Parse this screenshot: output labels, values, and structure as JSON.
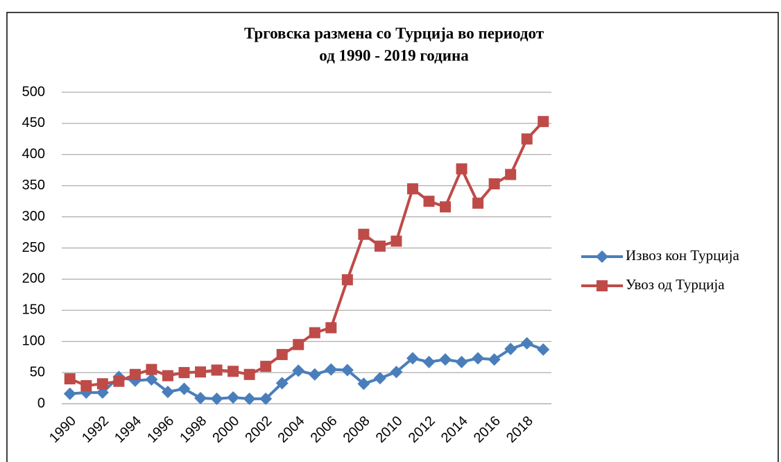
{
  "chart_data": {
    "type": "line",
    "title": [
      "Трговска размена со Турција во периодот",
      "од 1990 - 2019 година"
    ],
    "categories": [
      "1990",
      null,
      "1992",
      null,
      "1994",
      null,
      "1996",
      null,
      "1998",
      null,
      "2000",
      null,
      "2002",
      null,
      "2004",
      null,
      "2006",
      null,
      "2008",
      null,
      "2010",
      null,
      "2012",
      null,
      "2014",
      null,
      "2016",
      null,
      "2018",
      null
    ],
    "series": [
      {
        "name": "Извоз кон Турција",
        "color": "#4a7ebb",
        "marker": "diamond",
        "values": [
          16,
          18,
          18,
          43,
          37,
          39,
          19,
          24,
          9,
          8,
          10,
          8,
          8,
          33,
          53,
          47,
          55,
          54,
          32,
          41,
          51,
          73,
          67,
          71,
          67,
          73,
          71,
          88,
          97,
          87
        ]
      },
      {
        "name": "Увоз од Турција",
        "color": "#be4b48",
        "marker": "square",
        "values": [
          40,
          29,
          32,
          36,
          47,
          55,
          45,
          50,
          51,
          54,
          52,
          47,
          60,
          79,
          95,
          114,
          122,
          199,
          272,
          253,
          261,
          345,
          325,
          316,
          377,
          322,
          353,
          368,
          425,
          453
        ]
      }
    ],
    "ylim": [
      0,
      500
    ],
    "yticks": [
      0,
      50,
      100,
      150,
      200,
      250,
      300,
      350,
      400,
      450,
      500
    ],
    "grid": true,
    "legend": "right"
  }
}
